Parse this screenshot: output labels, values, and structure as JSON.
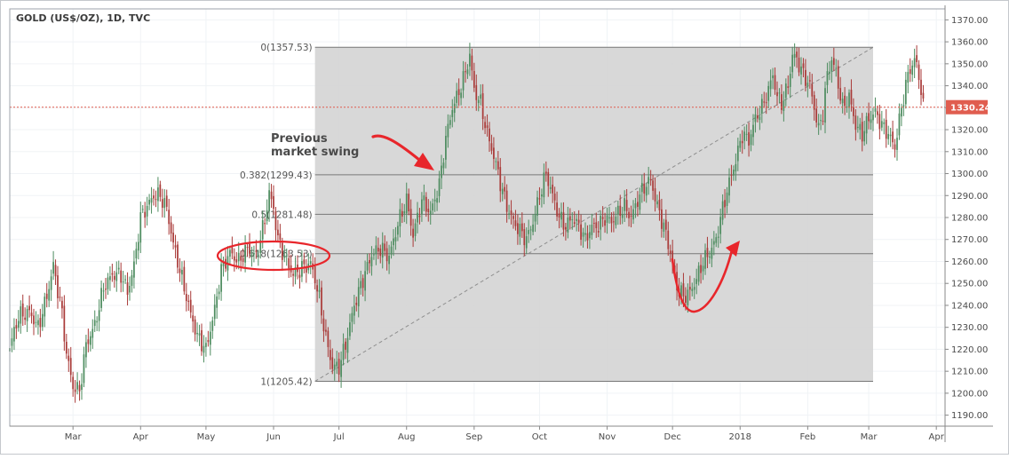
{
  "chart_data": {
    "type": "candlestick",
    "title": "GOLD (US$/OZ), 1D, TVC",
    "xlabel": "",
    "ylabel": "",
    "ylim": [
      1185,
      1375
    ],
    "y_ticks": [
      1190,
      1200,
      1210,
      1220,
      1230,
      1240,
      1250,
      1260,
      1270,
      1280,
      1290,
      1300,
      1310,
      1320,
      1330,
      1340,
      1350,
      1360,
      1370
    ],
    "x_ticks": [
      {
        "label": "Mar",
        "t": 47
      },
      {
        "label": "Apr",
        "t": 78
      },
      {
        "label": "May",
        "t": 108
      },
      {
        "label": "Jun",
        "t": 139
      },
      {
        "label": "Jul",
        "t": 169
      },
      {
        "label": "Aug",
        "t": 200
      },
      {
        "label": "Sep",
        "t": 231
      },
      {
        "label": "Oct",
        "t": 261
      },
      {
        "label": "Nov",
        "t": 292
      },
      {
        "label": "Dec",
        "t": 322
      },
      {
        "label": "2018",
        "t": 353
      },
      {
        "label": "Feb",
        "t": 384
      },
      {
        "label": "Mar",
        "t": 412
      },
      {
        "label": "Apr",
        "t": 443
      }
    ],
    "t_range": [
      18,
      447
    ],
    "grid": true,
    "up_color": "#4d8c5f",
    "down_color": "#a93a38",
    "last_price": {
      "value": 1330.24,
      "label": "1330.24",
      "color": "#e05d4f"
    },
    "fibonacci": {
      "t_start": 158,
      "t_end": 414,
      "levels": [
        {
          "ratio": "0",
          "value": 1357.53,
          "label": "0(1357.53)"
        },
        {
          "ratio": "0.382",
          "value": 1299.43,
          "label": "0.382(1299.43)"
        },
        {
          "ratio": "0.5",
          "value": 1281.48,
          "label": "0.5(1281.48)"
        },
        {
          "ratio": "0.618",
          "value": 1263.53,
          "label": "0.618(1263.53)"
        },
        {
          "ratio": "1",
          "value": 1205.42,
          "label": "1(1205.42)"
        }
      ],
      "trend_line": {
        "t1": 158,
        "v1": 1205.42,
        "t2": 414,
        "v2": 1357.53
      }
    },
    "annotation": {
      "lines": [
        "Previous",
        "market swing"
      ],
      "color": "#4a4a4a"
    },
    "close_anchors": [
      [
        18,
        1221
      ],
      [
        22,
        1235
      ],
      [
        27,
        1237
      ],
      [
        31,
        1230
      ],
      [
        35,
        1244
      ],
      [
        38,
        1258
      ],
      [
        42,
        1236
      ],
      [
        44,
        1218
      ],
      [
        47,
        1203
      ],
      [
        50,
        1201
      ],
      [
        53,
        1222
      ],
      [
        57,
        1231
      ],
      [
        61,
        1248
      ],
      [
        65,
        1254
      ],
      [
        69,
        1254
      ],
      [
        72,
        1246
      ],
      [
        75,
        1258
      ],
      [
        78,
        1280
      ],
      [
        81,
        1285
      ],
      [
        84,
        1290
      ],
      [
        87,
        1290
      ],
      [
        90,
        1284
      ],
      [
        93,
        1268
      ],
      [
        97,
        1252
      ],
      [
        101,
        1236
      ],
      [
        104,
        1226
      ],
      [
        108,
        1220
      ],
      [
        112,
        1238
      ],
      [
        115,
        1256
      ],
      [
        119,
        1264
      ],
      [
        123,
        1260
      ],
      [
        127,
        1266
      ],
      [
        131,
        1262
      ],
      [
        135,
        1279
      ],
      [
        137,
        1291
      ],
      [
        139,
        1284
      ],
      [
        141,
        1270
      ],
      [
        144,
        1262
      ],
      [
        148,
        1254
      ],
      [
        152,
        1257
      ],
      [
        156,
        1259
      ],
      [
        158,
        1252
      ],
      [
        160,
        1243
      ],
      [
        163,
        1225
      ],
      [
        166,
        1212
      ],
      [
        169,
        1212
      ],
      [
        172,
        1222
      ],
      [
        176,
        1240
      ],
      [
        180,
        1252
      ],
      [
        184,
        1263
      ],
      [
        188,
        1266
      ],
      [
        192,
        1262
      ],
      [
        196,
        1277
      ],
      [
        200,
        1288
      ],
      [
        203,
        1272
      ],
      [
        207,
        1288
      ],
      [
        211,
        1282
      ],
      [
        215,
        1295
      ],
      [
        218,
        1316
      ],
      [
        221,
        1330
      ],
      [
        224,
        1337
      ],
      [
        227,
        1346
      ],
      [
        229,
        1354
      ],
      [
        231,
        1338
      ],
      [
        234,
        1332
      ],
      [
        237,
        1318
      ],
      [
        240,
        1308
      ],
      [
        243,
        1296
      ],
      [
        246,
        1285
      ],
      [
        249,
        1278
      ],
      [
        252,
        1274
      ],
      [
        255,
        1270
      ],
      [
        258,
        1278
      ],
      [
        261,
        1290
      ],
      [
        264,
        1300
      ],
      [
        267,
        1290
      ],
      [
        270,
        1280
      ],
      [
        273,
        1276
      ],
      [
        276,
        1280
      ],
      [
        279,
        1276
      ],
      [
        282,
        1270
      ],
      [
        285,
        1276
      ],
      [
        288,
        1276
      ],
      [
        291,
        1280
      ],
      [
        294,
        1278
      ],
      [
        297,
        1282
      ],
      [
        300,
        1285
      ],
      [
        303,
        1280
      ],
      [
        306,
        1288
      ],
      [
        309,
        1294
      ],
      [
        312,
        1297
      ],
      [
        315,
        1285
      ],
      [
        318,
        1276
      ],
      [
        321,
        1264
      ],
      [
        324,
        1248
      ],
      [
        327,
        1244
      ],
      [
        330,
        1246
      ],
      [
        333,
        1252
      ],
      [
        336,
        1260
      ],
      [
        339,
        1264
      ],
      [
        342,
        1270
      ],
      [
        345,
        1284
      ],
      [
        348,
        1296
      ],
      [
        351,
        1306
      ],
      [
        354,
        1318
      ],
      [
        357,
        1315
      ],
      [
        360,
        1325
      ],
      [
        363,
        1330
      ],
      [
        366,
        1338
      ],
      [
        368,
        1345
      ],
      [
        370,
        1335
      ],
      [
        372,
        1332
      ],
      [
        375,
        1340
      ],
      [
        377,
        1354
      ],
      [
        379,
        1352
      ],
      [
        382,
        1345
      ],
      [
        385,
        1340
      ],
      [
        387,
        1330
      ],
      [
        389,
        1320
      ],
      [
        391,
        1328
      ],
      [
        393,
        1345
      ],
      [
        395,
        1352
      ],
      [
        397,
        1346
      ],
      [
        400,
        1330
      ],
      [
        403,
        1335
      ],
      [
        406,
        1322
      ],
      [
        409,
        1318
      ],
      [
        412,
        1325
      ],
      [
        415,
        1328
      ],
      [
        418,
        1322
      ],
      [
        421,
        1318
      ],
      [
        424,
        1312
      ],
      [
        427,
        1330
      ],
      [
        430,
        1345
      ],
      [
        433,
        1352
      ],
      [
        435,
        1345
      ],
      [
        437,
        1330
      ]
    ]
  }
}
